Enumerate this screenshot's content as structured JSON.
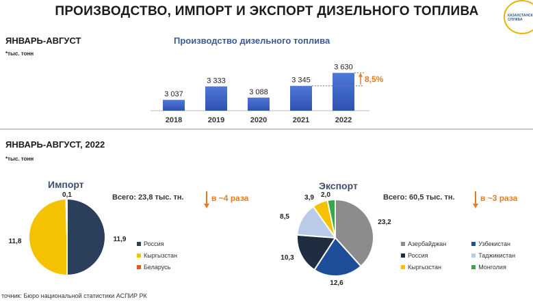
{
  "title": "ПРОИЗВОДСТВО, ИМПОРТ И ЭКСПОРТ ДИЗЕЛЬНОГО ТОПЛИВА",
  "logo": {
    "text": "КАЗАХСТАНСКАЯ СЛУЖБА",
    "colors": {
      "ring": "#e8b400",
      "text": "#2a5d9a"
    }
  },
  "top_section": {
    "period": "ЯНВАРЬ-АВГУСТ",
    "unit": "*тыс. тонн"
  },
  "bottom_section": {
    "period": "ЯНВАРЬ-АВГУСТ, 2022",
    "unit": "*тыс. тонн"
  },
  "source": "точник: Бюро национальной статистики АСПИР РК",
  "chart_data": [
    {
      "type": "bar",
      "title": "Производство дизельного топлива",
      "categories": [
        "2018",
        "2019",
        "2020",
        "2021",
        "2022"
      ],
      "values": [
        3037,
        3333,
        3088,
        3345,
        3630
      ],
      "labels": [
        "3 037",
        "3 333",
        "3 088",
        "3 345",
        "3 630"
      ],
      "ylim": [
        2800,
        3700
      ],
      "annotation": "8,5%",
      "color": "#3f66c7"
    },
    {
      "type": "pie",
      "title": "Импорт",
      "total_label": "Всего: 23,8 тыс. тн.",
      "change_label": "в ~4 раза",
      "slices": [
        {
          "name": "Россия",
          "value": 11.9,
          "label": "11,9",
          "color": "#2b3f5c"
        },
        {
          "name": "Кыргызстан",
          "value": 11.8,
          "label": "11,8",
          "color": "#f5c200"
        },
        {
          "name": "Беларусь",
          "value": 0.1,
          "label": "0,1",
          "color": "#e05a1a"
        }
      ]
    },
    {
      "type": "pie",
      "title": "Экспорт",
      "total_label": "Всего: 60,5 тыс. тн.",
      "change_label": "в ~3 раза",
      "slices": [
        {
          "name": "Азербайджан",
          "value": 23.2,
          "label": "23,2",
          "color": "#8c8c8c"
        },
        {
          "name": "Узбекистан",
          "value": 12.6,
          "label": "12,6",
          "color": "#1f4e99"
        },
        {
          "name": "Россия",
          "value": 10.3,
          "label": "10,3",
          "color": "#1f2d40"
        },
        {
          "name": "Таджикистан",
          "value": 8.5,
          "label": "8,5",
          "color": "#b9cbe9"
        },
        {
          "name": "Кыргызстан",
          "value": 3.9,
          "label": "3,9",
          "color": "#f5c200"
        },
        {
          "name": "Монголия",
          "value": 2.0,
          "label": "2,0",
          "color": "#3aa54a"
        }
      ]
    }
  ]
}
